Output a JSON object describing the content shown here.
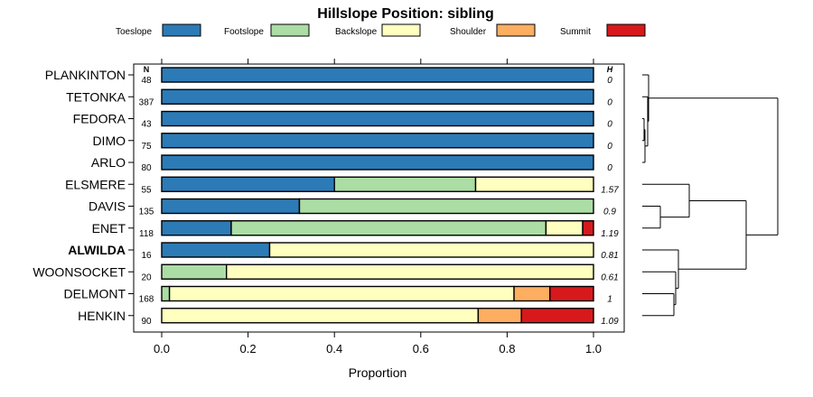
{
  "chart_data": {
    "type": "bar",
    "stacked": true,
    "orientation": "horizontal",
    "title": "Hillslope Position: sibling",
    "xlabel": "Proportion",
    "ylabel": "",
    "xlim": [
      0,
      1
    ],
    "x_ticks": [
      0,
      0.2,
      0.4,
      0.6,
      0.8,
      1
    ],
    "x_tick_labels": [
      "0.0",
      "0.2",
      "0.4",
      "0.6",
      "0.8",
      "1.0"
    ],
    "n_header": "N",
    "h_header": "H",
    "legend": [
      {
        "name": "Toeslope",
        "color": "#2c7bb6"
      },
      {
        "name": "Footslope",
        "color": "#abdda4"
      },
      {
        "name": "Backslope",
        "color": "#ffffbf"
      },
      {
        "name": "Shoulder",
        "color": "#fdae61"
      },
      {
        "name": "Summit",
        "color": "#d7191c"
      }
    ],
    "series_names": [
      "Toeslope",
      "Footslope",
      "Backslope",
      "Shoulder",
      "Summit"
    ],
    "categories": [
      {
        "name": "PLANKINTON",
        "n": "48",
        "h": "0",
        "bold": false,
        "values": [
          1,
          0,
          0,
          0,
          0
        ]
      },
      {
        "name": "TETONKA",
        "n": "387",
        "h": "0",
        "bold": false,
        "values": [
          1,
          0,
          0,
          0,
          0
        ]
      },
      {
        "name": "FEDORA",
        "n": "43",
        "h": "0",
        "bold": false,
        "values": [
          1,
          0,
          0,
          0,
          0
        ]
      },
      {
        "name": "DIMO",
        "n": "75",
        "h": "0",
        "bold": false,
        "values": [
          1,
          0,
          0,
          0,
          0
        ]
      },
      {
        "name": "ARLO",
        "n": "80",
        "h": "0",
        "bold": false,
        "values": [
          1,
          0,
          0,
          0,
          0
        ]
      },
      {
        "name": "ELSMERE",
        "n": "55",
        "h": "1.57",
        "bold": false,
        "values": [
          0.4,
          0.327,
          0.273,
          0,
          0
        ]
      },
      {
        "name": "DAVIS",
        "n": "135",
        "h": "0.9",
        "bold": false,
        "values": [
          0.319,
          0.681,
          0,
          0,
          0
        ]
      },
      {
        "name": "ENET",
        "n": "118",
        "h": "1.19",
        "bold": false,
        "values": [
          0.161,
          0.729,
          0.085,
          0,
          0.025
        ]
      },
      {
        "name": "ALWILDA",
        "n": "16",
        "h": "0.81",
        "bold": true,
        "values": [
          0.25,
          0,
          0.75,
          0,
          0
        ]
      },
      {
        "name": "WOONSOCKET",
        "n": "20",
        "h": "0.61",
        "bold": false,
        "values": [
          0,
          0.15,
          0.85,
          0,
          0
        ]
      },
      {
        "name": "DELMONT",
        "n": "168",
        "h": "1",
        "bold": false,
        "values": [
          0,
          0.018,
          0.798,
          0.083,
          0.101
        ]
      },
      {
        "name": "HENKIN",
        "n": "90",
        "h": "1.09",
        "bold": false,
        "values": [
          0,
          0,
          0.733,
          0.1,
          0.167
        ]
      }
    ],
    "dendrogram": [
      {
        "a": "FEDORA",
        "b": "DIMO",
        "height": 0.01
      },
      {
        "a": "FEDORA+DIMO",
        "b": "ARLO",
        "height": 0.015
      },
      {
        "a": "TETONKA",
        "b": "FEDORA+DIMO+ARLO",
        "height": 0.03
      },
      {
        "a": "PLANKINTON",
        "b": "TETONKA+FEDORA+DIMO+ARLO",
        "height": 0.035
      },
      {
        "a": "DAVIS",
        "b": "ENET",
        "height": 0.1
      },
      {
        "a": "ELSMERE",
        "b": "DAVIS+ENET",
        "height": 0.26
      },
      {
        "a": "DELMONT",
        "b": "HENKIN",
        "height": 0.175
      },
      {
        "a": "WOONSOCKET",
        "b": "DELMONT+HENKIN",
        "height": 0.185
      },
      {
        "a": "ALWILDA",
        "b": "WOONSOCKET+DELMONT+HENKIN",
        "height": 0.2
      },
      {
        "a": "ELSMERE+DAVIS+ENET",
        "b": "ALWILDA+WOONSOCKET+DELMONT+HENKIN",
        "height": 0.575
      },
      {
        "a": "upper",
        "b": "lower",
        "height": 0.75
      }
    ]
  }
}
